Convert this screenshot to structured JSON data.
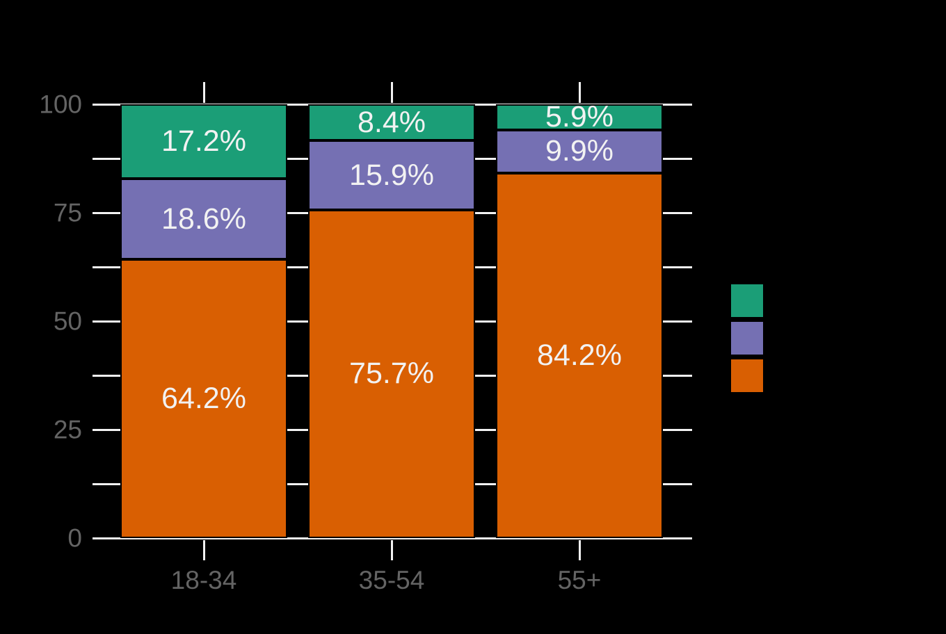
{
  "chart": {
    "background_color": "#000000",
    "gridline_color": "#f2f2f2",
    "axis_text_color": "#646464",
    "bar_label_text_color": "#f2f2f2"
  },
  "chart_data": {
    "type": "bar",
    "stacked": true,
    "orientation": "vertical",
    "title": "",
    "xlabel": "",
    "ylabel": "",
    "categories": [
      "18-34",
      "35-54",
      "55+"
    ],
    "series": [
      {
        "id": "orange-bottom-segment",
        "stack_position": "bottom",
        "color": "#d95f02",
        "values": [
          64.2,
          75.7,
          84.2
        ],
        "data_labels": [
          "64.2%",
          "75.7%",
          "84.2%"
        ]
      },
      {
        "id": "purple-middle-segment",
        "stack_position": "middle",
        "color": "#7570b3",
        "values": [
          18.6,
          15.9,
          9.9
        ],
        "data_labels": [
          "18.6%",
          "15.9%",
          "9.9%"
        ]
      },
      {
        "id": "green-top-segment",
        "stack_position": "top",
        "color": "#1b9e77",
        "values": [
          17.2,
          8.4,
          5.9
        ],
        "data_labels": [
          "17.2%",
          "8.4%",
          "5.9%"
        ]
      }
    ],
    "ylim": [
      0,
      100
    ],
    "y_major_ticks": [
      0,
      25,
      50,
      75,
      100
    ],
    "y_tick_labels": [
      "0",
      "25",
      "50",
      "75",
      "100"
    ],
    "y_minor_tick_step": 12.5,
    "grid": "horizontal white lines at every 12.5 units, hidden behind bars, visible in gaps",
    "x_ticks": "one white tick above and below each bar center",
    "legend": {
      "position": "right",
      "labels_visible": false,
      "entries": [
        {
          "swatch_color": "#1b9e77",
          "label": ""
        },
        {
          "swatch_color": "#7570b3",
          "label": ""
        },
        {
          "swatch_color": "#d95f02",
          "label": ""
        }
      ]
    }
  }
}
